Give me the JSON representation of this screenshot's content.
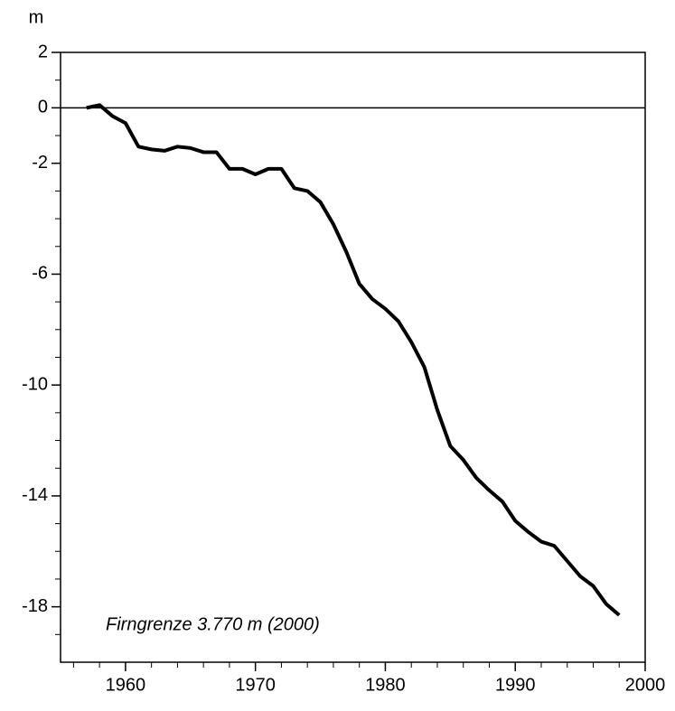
{
  "chart_data": {
    "type": "line",
    "y_label": "m",
    "annotation": "Firngrenze 3.770 m (2000)",
    "x": [
      1957,
      1958,
      1959,
      1960,
      1961,
      1962,
      1963,
      1964,
      1965,
      1966,
      1967,
      1968,
      1969,
      1970,
      1971,
      1972,
      1973,
      1974,
      1975,
      1976,
      1977,
      1978,
      1979,
      1980,
      1981,
      1982,
      1983,
      1984,
      1985,
      1986,
      1987,
      1988,
      1989,
      1990,
      1991,
      1992,
      1993,
      1994,
      1995,
      1996,
      1997,
      1998
    ],
    "series": [
      {
        "color": "#000000",
        "values": [
          0,
          0.1,
          -0.3,
          -0.55,
          -1.4,
          -1.5,
          -1.55,
          -1.4,
          -1.45,
          -1.6,
          -1.6,
          -2.2,
          -2.2,
          -2.4,
          -2.2,
          -2.2,
          -2.9,
          -3.0,
          -3.4,
          -4.2,
          -5.2,
          -6.35,
          -6.9,
          -7.25,
          -7.7,
          -8.45,
          -9.35,
          -10.9,
          -12.2,
          -12.7,
          -13.35,
          -13.8,
          -14.2,
          -14.9,
          -15.3,
          -15.65,
          -15.8,
          -16.35,
          -16.9,
          -17.25,
          -17.9,
          -18.3
        ]
      }
    ],
    "xlim": [
      1955,
      2000
    ],
    "xticks": [
      1960,
      1970,
      1980,
      1990,
      2000
    ],
    "xticks_minor": [
      1956,
      1958,
      1962,
      1964,
      1966,
      1968,
      1972,
      1974,
      1976,
      1978,
      1982,
      1984,
      1986,
      1988,
      1992,
      1994,
      1996,
      1998
    ],
    "ylim": [
      -20,
      2
    ],
    "yticks": [
      2,
      0,
      -2,
      -6,
      -10,
      -14,
      -18
    ],
    "yticks_minor": [
      1,
      -1,
      -3,
      -4,
      -5,
      -7,
      -8,
      -9,
      -11,
      -12,
      -13,
      -15,
      -16,
      -17,
      -19
    ],
    "zero_line": true
  }
}
